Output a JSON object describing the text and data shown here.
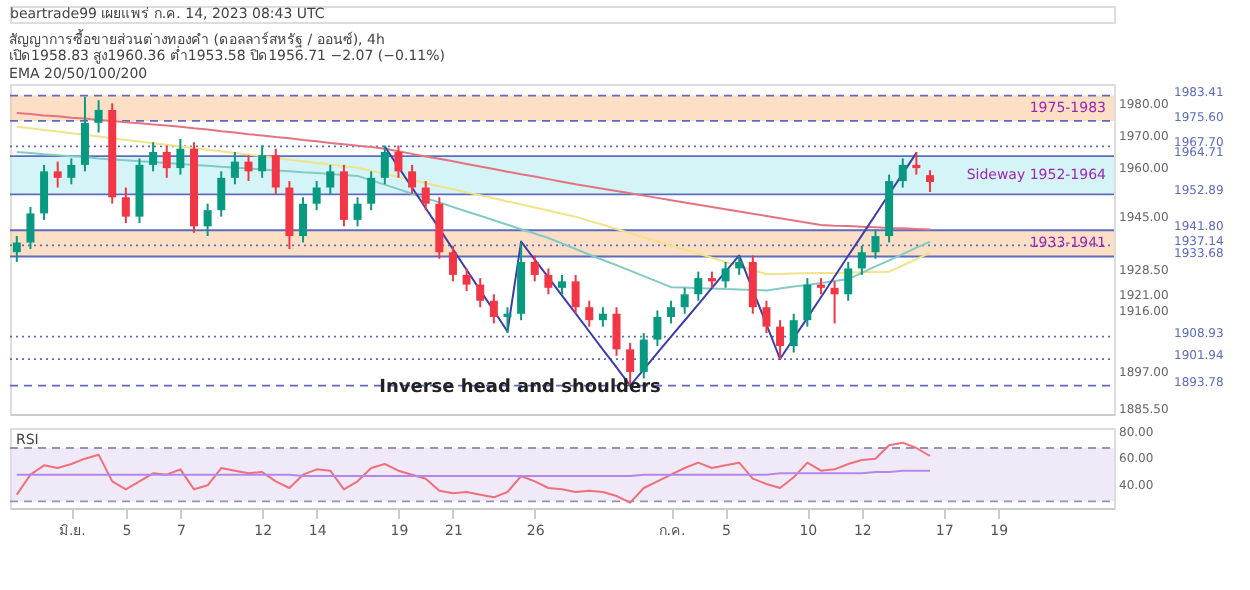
{
  "chart_data": [
    {
      "type": "candlestick",
      "title": "สัญญาการซื้อขายส่วนต่างทองคำ (ดอลลาร์สหรัฐ / ออนซ์), 4h",
      "annotations": [
        "beartrade99 เผยแพร่ ก.ค. 14, 2023 08:43 UTC",
        "เปิด1958.83 สูง1960.36 ต่ำ1953.58 ปิด1956.71 −2.07 (−0.11%)",
        "EMA 20/50/100/200",
        "Inverse head and shoulders"
      ],
      "categories": [
        null,
        null,
        null,
        null,
        null,
        null,
        null,
        null,
        null,
        null,
        null,
        null,
        null,
        null,
        null,
        null,
        null,
        null,
        null,
        null,
        null,
        null,
        null,
        null,
        null,
        null,
        null,
        null,
        null,
        null,
        null,
        null,
        null,
        null,
        null,
        null,
        null,
        null,
        null,
        null,
        null,
        null,
        null,
        null,
        null,
        null,
        null,
        null,
        null,
        null,
        null,
        null,
        null,
        null,
        null,
        null,
        null,
        null,
        null,
        null,
        null,
        null,
        null,
        null,
        null,
        null,
        null,
        null,
        null,
        null,
        null,
        null,
        null,
        null,
        null,
        null,
        null,
        null,
        null,
        null,
        null
      ],
      "ohlc": [
        [
          1935,
          1940,
          1932,
          1938
        ],
        [
          1938,
          1949,
          1936,
          1947
        ],
        [
          1947,
          1962,
          1945,
          1960
        ],
        [
          1960,
          1963,
          1955,
          1958
        ],
        [
          1958,
          1964,
          1956,
          1962
        ],
        [
          1962,
          1983,
          1960,
          1975
        ],
        [
          1975,
          1982,
          1972,
          1979
        ],
        [
          1979,
          1981,
          1950,
          1952
        ],
        [
          1952,
          1955,
          1944,
          1946
        ],
        [
          1946,
          1964,
          1944,
          1962
        ],
        [
          1962,
          1969,
          1960,
          1966
        ],
        [
          1966,
          1968,
          1958,
          1961
        ],
        [
          1961,
          1970,
          1959,
          1967
        ],
        [
          1967,
          1969,
          1941,
          1943
        ],
        [
          1943,
          1950,
          1940,
          1948
        ],
        [
          1948,
          1960,
          1946,
          1958
        ],
        [
          1958,
          1966,
          1956,
          1963
        ],
        [
          1963,
          1965,
          1957,
          1960
        ],
        [
          1960,
          1968,
          1958,
          1965
        ],
        [
          1965,
          1967,
          1953,
          1955
        ],
        [
          1955,
          1957,
          1936,
          1940
        ],
        [
          1940,
          1952,
          1938,
          1950
        ],
        [
          1950,
          1957,
          1948,
          1955
        ],
        [
          1955,
          1962,
          1953,
          1960
        ],
        [
          1960,
          1962,
          1943,
          1945
        ],
        [
          1945,
          1952,
          1943,
          1950
        ],
        [
          1950,
          1960,
          1948,
          1958
        ],
        [
          1958,
          1968,
          1956,
          1966
        ],
        [
          1966,
          1968,
          1958,
          1960
        ],
        [
          1960,
          1962,
          1953,
          1955
        ],
        [
          1955,
          1957,
          1948,
          1950
        ],
        [
          1950,
          1952,
          1933,
          1935
        ],
        [
          1935,
          1937,
          1926,
          1928
        ],
        [
          1928,
          1930,
          1923,
          1925
        ],
        [
          1925,
          1927,
          1918,
          1920
        ],
        [
          1920,
          1922,
          1913,
          1915
        ],
        [
          1915,
          1918,
          1910,
          1916
        ],
        [
          1916,
          1938,
          1914,
          1932
        ],
        [
          1932,
          1934,
          1926,
          1928
        ],
        [
          1928,
          1930,
          1922,
          1924
        ],
        [
          1924,
          1928,
          1922,
          1926
        ],
        [
          1926,
          1928,
          1916,
          1918
        ],
        [
          1918,
          1920,
          1912,
          1914
        ],
        [
          1914,
          1918,
          1912,
          1916
        ],
        [
          1916,
          1918,
          1903,
          1905
        ],
        [
          1905,
          1907,
          1893.78,
          1898
        ],
        [
          1898,
          1910,
          1896,
          1908
        ],
        [
          1908,
          1917,
          1906,
          1915
        ],
        [
          1915,
          1920,
          1913,
          1918
        ],
        [
          1918,
          1924,
          1916,
          1922
        ],
        [
          1922,
          1929,
          1920,
          1927
        ],
        [
          1927,
          1929,
          1924,
          1926
        ],
        [
          1926,
          1932,
          1924,
          1930
        ],
        [
          1930,
          1934,
          1928,
          1932
        ],
        [
          1932,
          1934,
          1916,
          1918
        ],
        [
          1918,
          1920,
          1910,
          1912
        ],
        [
          1912,
          1914,
          1901.94,
          1906
        ],
        [
          1906,
          1916,
          1904,
          1914
        ],
        [
          1914,
          1927,
          1912,
          1925
        ],
        [
          1925,
          1927,
          1922,
          1924
        ],
        [
          1924,
          1926,
          1913,
          1922
        ],
        [
          1922,
          1932,
          1920,
          1930
        ],
        [
          1930,
          1937,
          1928,
          1935
        ],
        [
          1935,
          1942,
          1933,
          1940
        ],
        [
          1940,
          1959,
          1938,
          1957
        ],
        [
          1957,
          1964,
          1955,
          1962
        ],
        [
          1962,
          1966,
          1959,
          1961
        ],
        [
          1958.83,
          1960.36,
          1953.58,
          1956.71
        ],
        null,
        null,
        null,
        null,
        null,
        null,
        null,
        null,
        null,
        null,
        null,
        null,
        null
      ],
      "colors": [
        "#089981",
        "#089981",
        "#089981",
        "#f23645",
        "#089981",
        "#089981",
        "#089981",
        "#f23645",
        "#f23645",
        "#089981",
        "#089981",
        "#f23645",
        "#089981",
        "#f23645",
        "#089981",
        "#089981",
        "#089981",
        "#f23645",
        "#089981",
        "#f23645",
        "#f23645",
        "#089981",
        "#089981",
        "#089981",
        "#f23645",
        "#089981",
        "#089981",
        "#089981",
        "#f23645",
        "#f23645",
        "#f23645",
        "#f23645",
        "#f23645",
        "#f23645",
        "#f23645",
        "#f23645",
        "#089981",
        "#089981",
        "#f23645",
        "#f23645",
        "#089981",
        "#f23645",
        "#f23645",
        "#089981",
        "#f23645",
        "#f23645",
        "#089981",
        "#089981",
        "#089981",
        "#089981",
        "#089981",
        "#f23645",
        "#089981",
        "#089981",
        "#f23645",
        "#f23645",
        "#f23645",
        "#089981",
        "#089981",
        "#f23645",
        "#f23645",
        "#089981",
        "#089981",
        "#089981",
        "#089981",
        "#089981",
        "#f23645",
        "#f23645",
        null,
        null,
        null,
        null,
        null,
        null,
        null,
        null,
        null,
        null,
        null,
        null,
        null
      ],
      "series": [
        {
          "type": "line",
          "color": "#e5737f",
          "values": [
            1978.0,
            1977.7,
            1977.3,
            1977.0,
            1976.6,
            1976.3,
            1975.9,
            1975.6,
            1975.2,
            1974.9,
            1974.5,
            1974.2,
            1973.8,
            1973.3,
            1972.9,
            1972.4,
            1972.0,
            1971.5,
            1971.1,
            1970.6,
            1970.2,
            1969.7,
            1969.3,
            1968.8,
            1968.4,
            1967.9,
            1967.5,
            1967.0,
            1966.2,
            1965.4,
            1964.6,
            1963.9,
            1963.1,
            1962.3,
            1961.5,
            1960.7,
            1959.9,
            1959.1,
            1958.4,
            1957.6,
            1956.8,
            1956.0,
            1955.3,
            1954.6,
            1953.9,
            1953.2,
            1952.5,
            1951.8,
            1951.1,
            1950.4,
            1949.7,
            1949.0,
            1948.3,
            1947.6,
            1946.9,
            1946.2,
            1945.5,
            1944.8,
            1944.1,
            1943.4,
            1943.2,
            1943.1,
            1942.9,
            1942.7,
            1942.5,
            1942.4,
            1942.2,
            1942.0,
            null,
            null,
            null,
            null,
            null,
            null,
            null,
            null,
            null,
            null,
            null,
            null,
            null
          ]
        },
        {
          "type": "line",
          "color": "#f2e28a",
          "values": [
            1973.8,
            1973.3,
            1972.8,
            1972.3,
            1971.8,
            1971.3,
            1970.8,
            1970.2,
            1969.7,
            1969.2,
            1968.7,
            1968.2,
            1967.7,
            1967.2,
            1966.7,
            1966.2,
            1965.7,
            1965.2,
            1964.7,
            1964.2,
            1963.6,
            1963.1,
            1962.6,
            1962.1,
            1961.6,
            1961.1,
            1960.2,
            1959.2,
            1958.3,
            1957.3,
            1956.4,
            1955.4,
            1954.5,
            1953.5,
            1952.6,
            1951.7,
            1950.7,
            1949.8,
            1948.8,
            1947.9,
            1946.9,
            1946.0,
            1944.7,
            1943.5,
            1942.2,
            1940.9,
            1939.6,
            1938.4,
            1937.1,
            1935.8,
            1934.6,
            1933.3,
            1932.0,
            1930.7,
            1929.5,
            1928.2,
            1928.3,
            1928.4,
            1928.5,
            1928.6,
            1928.6,
            1928.7,
            1928.8,
            1928.9,
            1929.0,
            1930.9,
            1932.9,
            1934.8,
            null,
            null,
            null,
            null,
            null,
            null,
            null,
            null,
            null,
            null,
            null,
            null,
            null
          ]
        },
        {
          "type": "line",
          "color": "#80cbc4",
          "values": [
            1966.0,
            1965.7,
            1965.3,
            1965.0,
            1964.7,
            1964.4,
            1964.0,
            1963.7,
            1963.4,
            1963.1,
            1962.9,
            1962.6,
            1962.3,
            1962.0,
            1961.7,
            1961.4,
            1961.2,
            1960.9,
            1960.6,
            1960.3,
            1960.0,
            1959.7,
            1959.5,
            1959.2,
            1958.9,
            1958.6,
            1957.2,
            1955.9,
            1954.5,
            1953.1,
            1951.7,
            1950.4,
            1949.0,
            1947.6,
            1946.3,
            1944.9,
            1943.5,
            1942.1,
            1940.8,
            1939.4,
            1937.7,
            1936.0,
            1934.3,
            1932.6,
            1931.0,
            1929.3,
            1927.6,
            1925.9,
            1924.2,
            1924.1,
            1923.9,
            1923.8,
            1923.6,
            1923.5,
            1923.3,
            1923.2,
            1923.8,
            1924.4,
            1924.9,
            1925.5,
            1926.1,
            1926.7,
            1928.6,
            1930.6,
            1932.5,
            1934.4,
            1936.4,
            1938.3,
            null,
            null,
            null,
            null,
            null,
            null,
            null,
            null,
            null,
            null,
            null,
            null,
            null
          ]
        },
        {
          "type": "line",
          "color": "#3d3dab",
          "values": [
            null,
            null,
            null,
            null,
            null,
            null,
            null,
            null,
            null,
            null,
            null,
            null,
            null,
            null,
            null,
            null,
            null,
            null,
            null,
            null,
            null,
            null,
            null,
            null,
            null,
            null,
            null,
            1967.7,
            1961.3,
            1955.0,
            1948.6,
            1942.3,
            1935.9,
            1929.6,
            1923.2,
            1916.9,
            1910.5,
            1938.3,
            1932.7,
            1927.2,
            1921.6,
            1916.1,
            1910.5,
            1904.9,
            1899.4,
            1893.8,
            1898.8,
            1903.9,
            1908.9,
            1913.9,
            1918.9,
            1924.0,
            1929.0,
            1934.0,
            1923.3,
            1912.7,
            1902.0,
            1908.4,
            1914.7,
            1921.1,
            1927.5,
            1933.9,
            1940.2,
            1946.6,
            1953.0,
            1959.3,
            1965.7,
            null,
            null,
            null,
            null,
            null,
            null,
            null,
            null,
            null,
            null,
            null,
            null,
            null,
            null
          ]
        }
      ],
      "ylim": [
        1885,
        1987
      ],
      "yticks": [
        {
          "value": 1980,
          "label": "1980.00"
        },
        {
          "value": 1970,
          "label": "1970.00"
        },
        {
          "value": 1960,
          "label": "1960.00"
        },
        {
          "value": 1945,
          "label": "1945.00"
        },
        {
          "value": 1928.5,
          "label": "1928.50"
        },
        {
          "value": 1921,
          "label": "1921.00"
        },
        {
          "value": 1916,
          "label": "1916.00"
        },
        {
          "value": 1897,
          "label": "1897.00"
        },
        {
          "value": 1885.5,
          "label": "1885.50"
        }
      ],
      "bands": [
        {
          "axis": "y",
          "from": 1975.6,
          "to": 1983.41,
          "label": "1975-1983",
          "color": "#f9c596"
        },
        {
          "axis": "y",
          "from": 1952.89,
          "to": 1964.71,
          "label": "Sideway 1952-1964",
          "color": "#b2ebf2"
        },
        {
          "axis": "y",
          "from": 1933.68,
          "to": 1941.8,
          "label": "1933-1941",
          "color": "#f9c596"
        }
      ],
      "ref_lines": [
        {
          "axis": "y",
          "value": 1983.41,
          "label": "1983.41",
          "color": "#5c6bc0",
          "line_style": "dashed"
        },
        {
          "axis": "y",
          "value": 1975.6,
          "label": "1975.60",
          "color": "#5c6bc0",
          "line_style": "dashed"
        },
        {
          "axis": "y",
          "value": 1967.7,
          "label": "1967.70",
          "color": "#5c6bc0",
          "line_style": "dotted"
        },
        {
          "axis": "y",
          "value": 1964.71,
          "label": "1964.71",
          "color": "#5c6bc0",
          "line_style": "solid"
        },
        {
          "axis": "y",
          "value": 1952.89,
          "label": "1952.89",
          "color": "#5c6bc0",
          "line_style": "solid"
        },
        {
          "axis": "y",
          "value": 1941.8,
          "label": "1941.80",
          "color": "#5c6bc0",
          "line_style": "solid"
        },
        {
          "axis": "y",
          "value": 1937.14,
          "label": "1937.14",
          "color": "#5c6bc0",
          "line_style": "dotted"
        },
        {
          "axis": "y",
          "value": 1933.68,
          "label": "1933.68",
          "color": "#5c6bc0",
          "line_style": "solid"
        },
        {
          "axis": "y",
          "value": 1908.93,
          "label": "1908.93",
          "color": "#5c6bc0",
          "line_style": "dotted"
        },
        {
          "axis": "y",
          "value": 1901.94,
          "label": "1901.94",
          "color": "#5c6bc0",
          "line_style": "dotted"
        },
        {
          "axis": "y",
          "value": 1893.78,
          "label": "1893.78",
          "color": "#5c6bc0",
          "line_style": "dashed"
        }
      ],
      "tick_labels": "y"
    },
    {
      "type": "line",
      "title": "RSI",
      "categories": [
        null,
        null,
        null,
        null,
        "มิ.ย.",
        null,
        null,
        null,
        "5",
        null,
        null,
        null,
        "7",
        null,
        null,
        null,
        null,
        null,
        "12",
        null,
        null,
        null,
        "14",
        null,
        null,
        null,
        null,
        null,
        "19",
        null,
        null,
        null,
        "21",
        null,
        null,
        null,
        null,
        null,
        "26",
        null,
        null,
        null,
        null,
        null,
        null,
        null,
        null,
        null,
        "ก.ค.",
        null,
        null,
        null,
        "5",
        null,
        null,
        null,
        null,
        null,
        "10",
        null,
        null,
        null,
        "12",
        null,
        null,
        null,
        null,
        null,
        "17",
        null,
        null,
        null,
        "19",
        null,
        null,
        null,
        null,
        null,
        null,
        null,
        null
      ],
      "series": [
        {
          "color": "#f06f7a",
          "values": [
            35,
            50,
            57,
            55,
            58,
            62,
            65,
            45,
            39,
            45,
            51,
            50,
            54,
            39,
            42,
            55,
            53,
            51,
            52,
            45,
            40,
            50,
            54,
            53,
            39,
            45,
            55,
            58,
            53,
            50,
            47,
            38,
            36,
            37,
            35,
            33,
            37,
            49,
            45,
            40,
            39,
            37,
            38,
            37,
            34,
            29,
            40,
            45,
            50,
            55,
            59,
            55,
            57,
            59,
            47,
            43,
            40,
            48,
            59,
            53,
            54,
            58,
            61,
            62,
            72,
            74,
            70,
            64,
            null,
            null,
            null,
            null,
            null,
            null,
            null,
            null,
            null,
            null,
            null,
            null,
            null
          ]
        },
        {
          "color": "#b388e8",
          "values": [
            50,
            50,
            50,
            50,
            50,
            50,
            50,
            50,
            50,
            50,
            50,
            50,
            50,
            50,
            50,
            50,
            50,
            50,
            50,
            50,
            50,
            49,
            49,
            49,
            49,
            49,
            49,
            49,
            49,
            49,
            49,
            49,
            49,
            49,
            49,
            49,
            49,
            49,
            49,
            49,
            49,
            49,
            49,
            49,
            49,
            49,
            50,
            50,
            50,
            50,
            50,
            50,
            50,
            50,
            50,
            50,
            51,
            51,
            51,
            51,
            51,
            51,
            51,
            52,
            52,
            53,
            53,
            53,
            null,
            null,
            null,
            null,
            null,
            null,
            null,
            null,
            null,
            null,
            null,
            null,
            null
          ]
        }
      ],
      "ylim": [
        25,
        85
      ],
      "yticks": [
        {
          "value": 40,
          "label": "40.00"
        },
        {
          "value": 60,
          "label": "60.00"
        },
        {
          "value": 80,
          "label": "80.00"
        }
      ],
      "bands": [
        {
          "axis": "y",
          "from": 30,
          "to": 70,
          "color": "#e3d9f2"
        }
      ],
      "ref_lines": [
        {
          "axis": "y",
          "value": 70,
          "color": "#9a8fb5",
          "line_style": "dashed"
        },
        {
          "axis": "y",
          "value": 30,
          "color": "#9a8fb5",
          "line_style": "dashed"
        }
      ]
    }
  ]
}
